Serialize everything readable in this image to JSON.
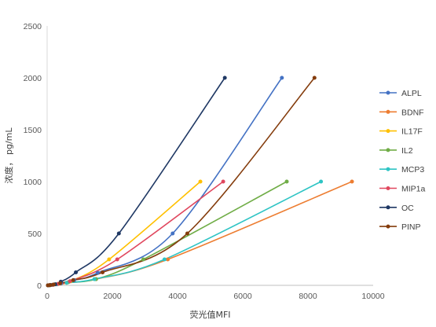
{
  "chart_data": {
    "type": "line",
    "title": "",
    "xlabel": "荧光值MFI",
    "ylabel": "浓度， pg/mL",
    "xlim": [
      0,
      10000
    ],
    "ylim": [
      0,
      2500
    ],
    "x_ticks": [
      0,
      2000,
      4000,
      6000,
      8000,
      10000
    ],
    "y_ticks": [
      0,
      500,
      1000,
      1500,
      2000,
      2500
    ],
    "grid": false,
    "legend": "right",
    "series": [
      {
        "name": "ALPL",
        "color": "#4472C4",
        "points": [
          [
            25,
            0
          ],
          [
            90,
            2
          ],
          [
            200,
            7
          ],
          [
            430,
            20
          ],
          [
            830,
            50
          ],
          [
            1550,
            120
          ],
          [
            3850,
            500
          ],
          [
            7200,
            2000
          ]
        ]
      },
      {
        "name": "BDNF",
        "color": "#ED7D31",
        "points": [
          [
            25,
            0
          ],
          [
            70,
            1
          ],
          [
            150,
            4
          ],
          [
            300,
            10
          ],
          [
            600,
            25
          ],
          [
            1500,
            60
          ],
          [
            3700,
            250
          ],
          [
            9350,
            1000
          ]
        ]
      },
      {
        "name": "IL17F",
        "color": "#FFC000",
        "points": [
          [
            25,
            0
          ],
          [
            80,
            2
          ],
          [
            170,
            5
          ],
          [
            350,
            14
          ],
          [
            720,
            40
          ],
          [
            1900,
            250
          ],
          [
            4700,
            1000
          ]
        ]
      },
      {
        "name": "IL2",
        "color": "#70AD47",
        "points": [
          [
            25,
            0
          ],
          [
            75,
            1
          ],
          [
            160,
            4
          ],
          [
            320,
            12
          ],
          [
            650,
            30
          ],
          [
            1500,
            60
          ],
          [
            2950,
            250
          ],
          [
            7350,
            1000
          ]
        ]
      },
      {
        "name": "MCP3",
        "color": "#2EC4C4",
        "points": [
          [
            25,
            0
          ],
          [
            70,
            1
          ],
          [
            150,
            4
          ],
          [
            300,
            10
          ],
          [
            600,
            25
          ],
          [
            1450,
            60
          ],
          [
            3600,
            250
          ],
          [
            8400,
            1000
          ]
        ]
      },
      {
        "name": "MIP1a",
        "color": "#E0475E",
        "points": [
          [
            25,
            0
          ],
          [
            80,
            2
          ],
          [
            170,
            5
          ],
          [
            340,
            14
          ],
          [
            700,
            40
          ],
          [
            2150,
            250
          ],
          [
            5400,
            1000
          ]
        ]
      },
      {
        "name": "OC",
        "color": "#1F3864",
        "points": [
          [
            25,
            0
          ],
          [
            100,
            3
          ],
          [
            250,
            10
          ],
          [
            420,
            35
          ],
          [
            880,
            125
          ],
          [
            2200,
            500
          ],
          [
            5450,
            2000
          ]
        ]
      },
      {
        "name": "PINP",
        "color": "#843C0C",
        "points": [
          [
            25,
            0
          ],
          [
            90,
            2
          ],
          [
            200,
            8
          ],
          [
            400,
            20
          ],
          [
            800,
            50
          ],
          [
            1700,
            125
          ],
          [
            4300,
            500
          ],
          [
            8200,
            2000
          ]
        ]
      }
    ]
  }
}
